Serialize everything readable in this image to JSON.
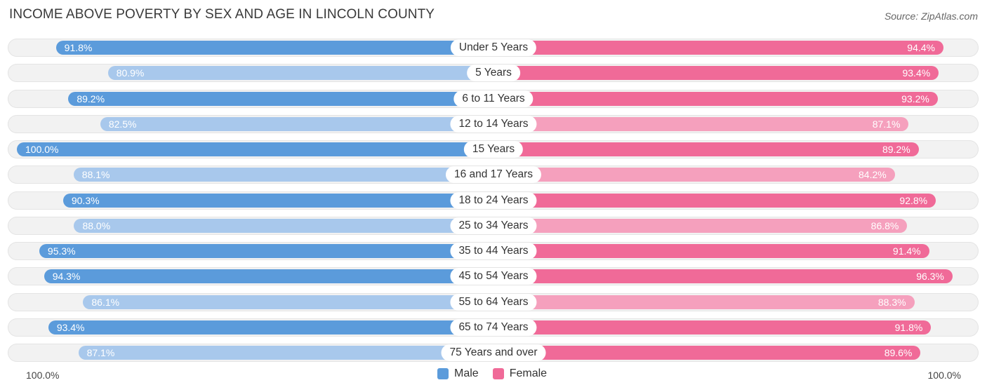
{
  "header": {
    "title": "INCOME ABOVE POVERTY BY SEX AND AGE IN LINCOLN COUNTY",
    "source": "Source: ZipAtlas.com"
  },
  "axis": {
    "left_label": "100.0%",
    "right_label": "100.0%"
  },
  "legend": {
    "male_label": "Male",
    "female_label": "Female"
  },
  "colors": {
    "male_strong": "#5b9bdb",
    "male_light": "#a8c8ec",
    "female_strong": "#f06a98",
    "female_light": "#f5a0bd"
  },
  "chart_data": {
    "type": "bar",
    "orientation": "horizontal-diverging",
    "title": "INCOME ABOVE POVERTY BY SEX AND AGE IN LINCOLN COUNTY",
    "categories": [
      "Under 5 Years",
      "5 Years",
      "6 to 11 Years",
      "12 to 14 Years",
      "15 Years",
      "16 and 17 Years",
      "18 to 24 Years",
      "25 to 34 Years",
      "35 to 44 Years",
      "45 to 54 Years",
      "55 to 64 Years",
      "65 to 74 Years",
      "75 Years and over"
    ],
    "series": [
      {
        "name": "Male",
        "values": [
          91.8,
          80.9,
          89.2,
          82.5,
          100.0,
          88.1,
          90.3,
          88.0,
          95.3,
          94.3,
          86.1,
          93.4,
          87.1
        ],
        "labels": [
          "91.8%",
          "80.9%",
          "89.2%",
          "82.5%",
          "100.0%",
          "88.1%",
          "90.3%",
          "88.0%",
          "95.3%",
          "94.3%",
          "86.1%",
          "93.4%",
          "87.1%"
        ]
      },
      {
        "name": "Female",
        "values": [
          94.4,
          93.4,
          93.2,
          87.1,
          89.2,
          84.2,
          92.8,
          86.8,
          91.4,
          96.3,
          88.3,
          91.8,
          89.6
        ],
        "labels": [
          "94.4%",
          "93.4%",
          "93.2%",
          "87.1%",
          "89.2%",
          "84.2%",
          "92.8%",
          "86.8%",
          "91.4%",
          "96.3%",
          "88.3%",
          "91.8%",
          "89.6%"
        ]
      }
    ],
    "xlim": [
      0,
      100
    ],
    "legend_position": "bottom-center"
  }
}
